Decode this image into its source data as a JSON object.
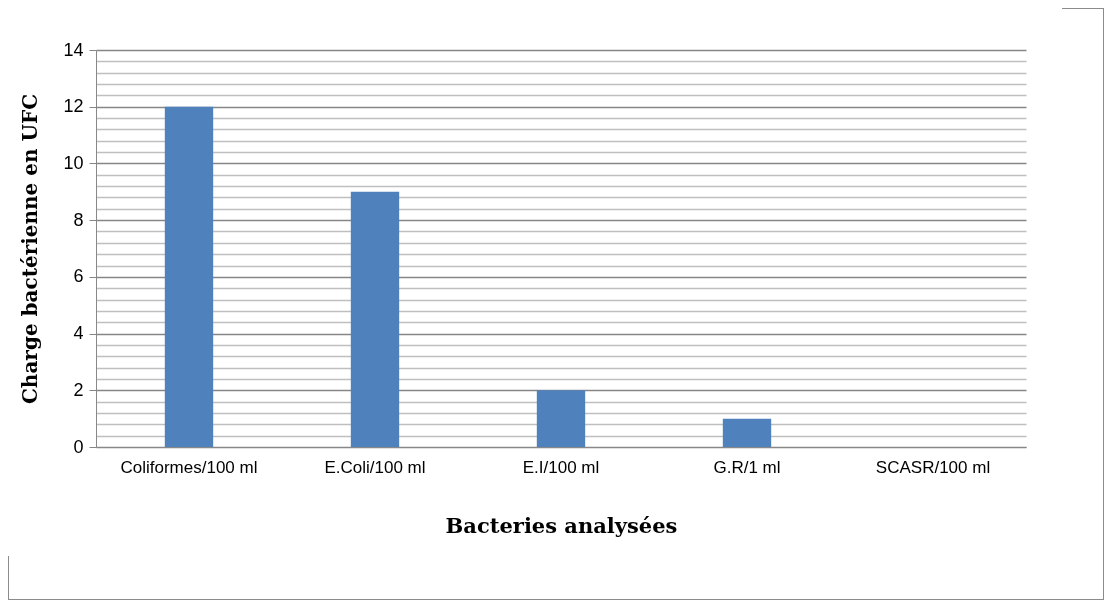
{
  "chart_data": {
    "type": "bar",
    "xlabel": "Bacteries  analysées",
    "ylabel": "Charge  bactérienne en UFC",
    "categories": [
      "Coliformes/100 ml",
      "E.Coli/100 ml",
      "E.I/100 ml",
      "G.R/1 ml",
      "SCASR/100 ml"
    ],
    "values": [
      12,
      9,
      2,
      1,
      0
    ],
    "color": "#4f81bd",
    "ylim": [
      0,
      14
    ],
    "yticks": [
      0,
      {
        "value": 0.4,
        "label": null
      },
      {
        "value": 0.8,
        "label": null
      },
      {
        "value": 1.2,
        "label": null
      },
      {
        "value": 1.6,
        "label": null
      },
      2,
      {
        "value": 2.4,
        "label": null
      },
      {
        "value": 2.8,
        "label": null
      },
      {
        "value": 3.2,
        "label": null
      },
      {
        "value": 3.6,
        "label": null
      },
      4,
      {
        "value": 4.4,
        "label": null
      },
      {
        "value": 4.8,
        "label": null
      },
      {
        "value": 5.2,
        "label": null
      },
      {
        "value": 5.6,
        "label": null
      },
      6,
      {
        "value": 6.4,
        "label": null
      },
      {
        "value": 6.8,
        "label": null
      },
      {
        "value": 7.2,
        "label": null
      },
      {
        "value": 7.6,
        "label": null
      },
      8,
      {
        "value": 8.4,
        "label": null
      },
      {
        "value": 8.8,
        "label": null
      },
      {
        "value": 9.2,
        "label": null
      },
      {
        "value": 9.6,
        "label": null
      },
      10,
      {
        "value": 10.4,
        "label": null
      },
      {
        "value": 10.8,
        "label": null
      },
      {
        "value": 11.2,
        "label": null
      },
      {
        "value": 11.6,
        "label": null
      },
      12,
      {
        "value": 12.4,
        "label": null
      },
      {
        "value": 12.8,
        "label": null
      },
      {
        "value": 13.2,
        "label": null
      },
      {
        "value": 13.6,
        "label": null
      },
      14
    ],
    "grid": "y"
  }
}
